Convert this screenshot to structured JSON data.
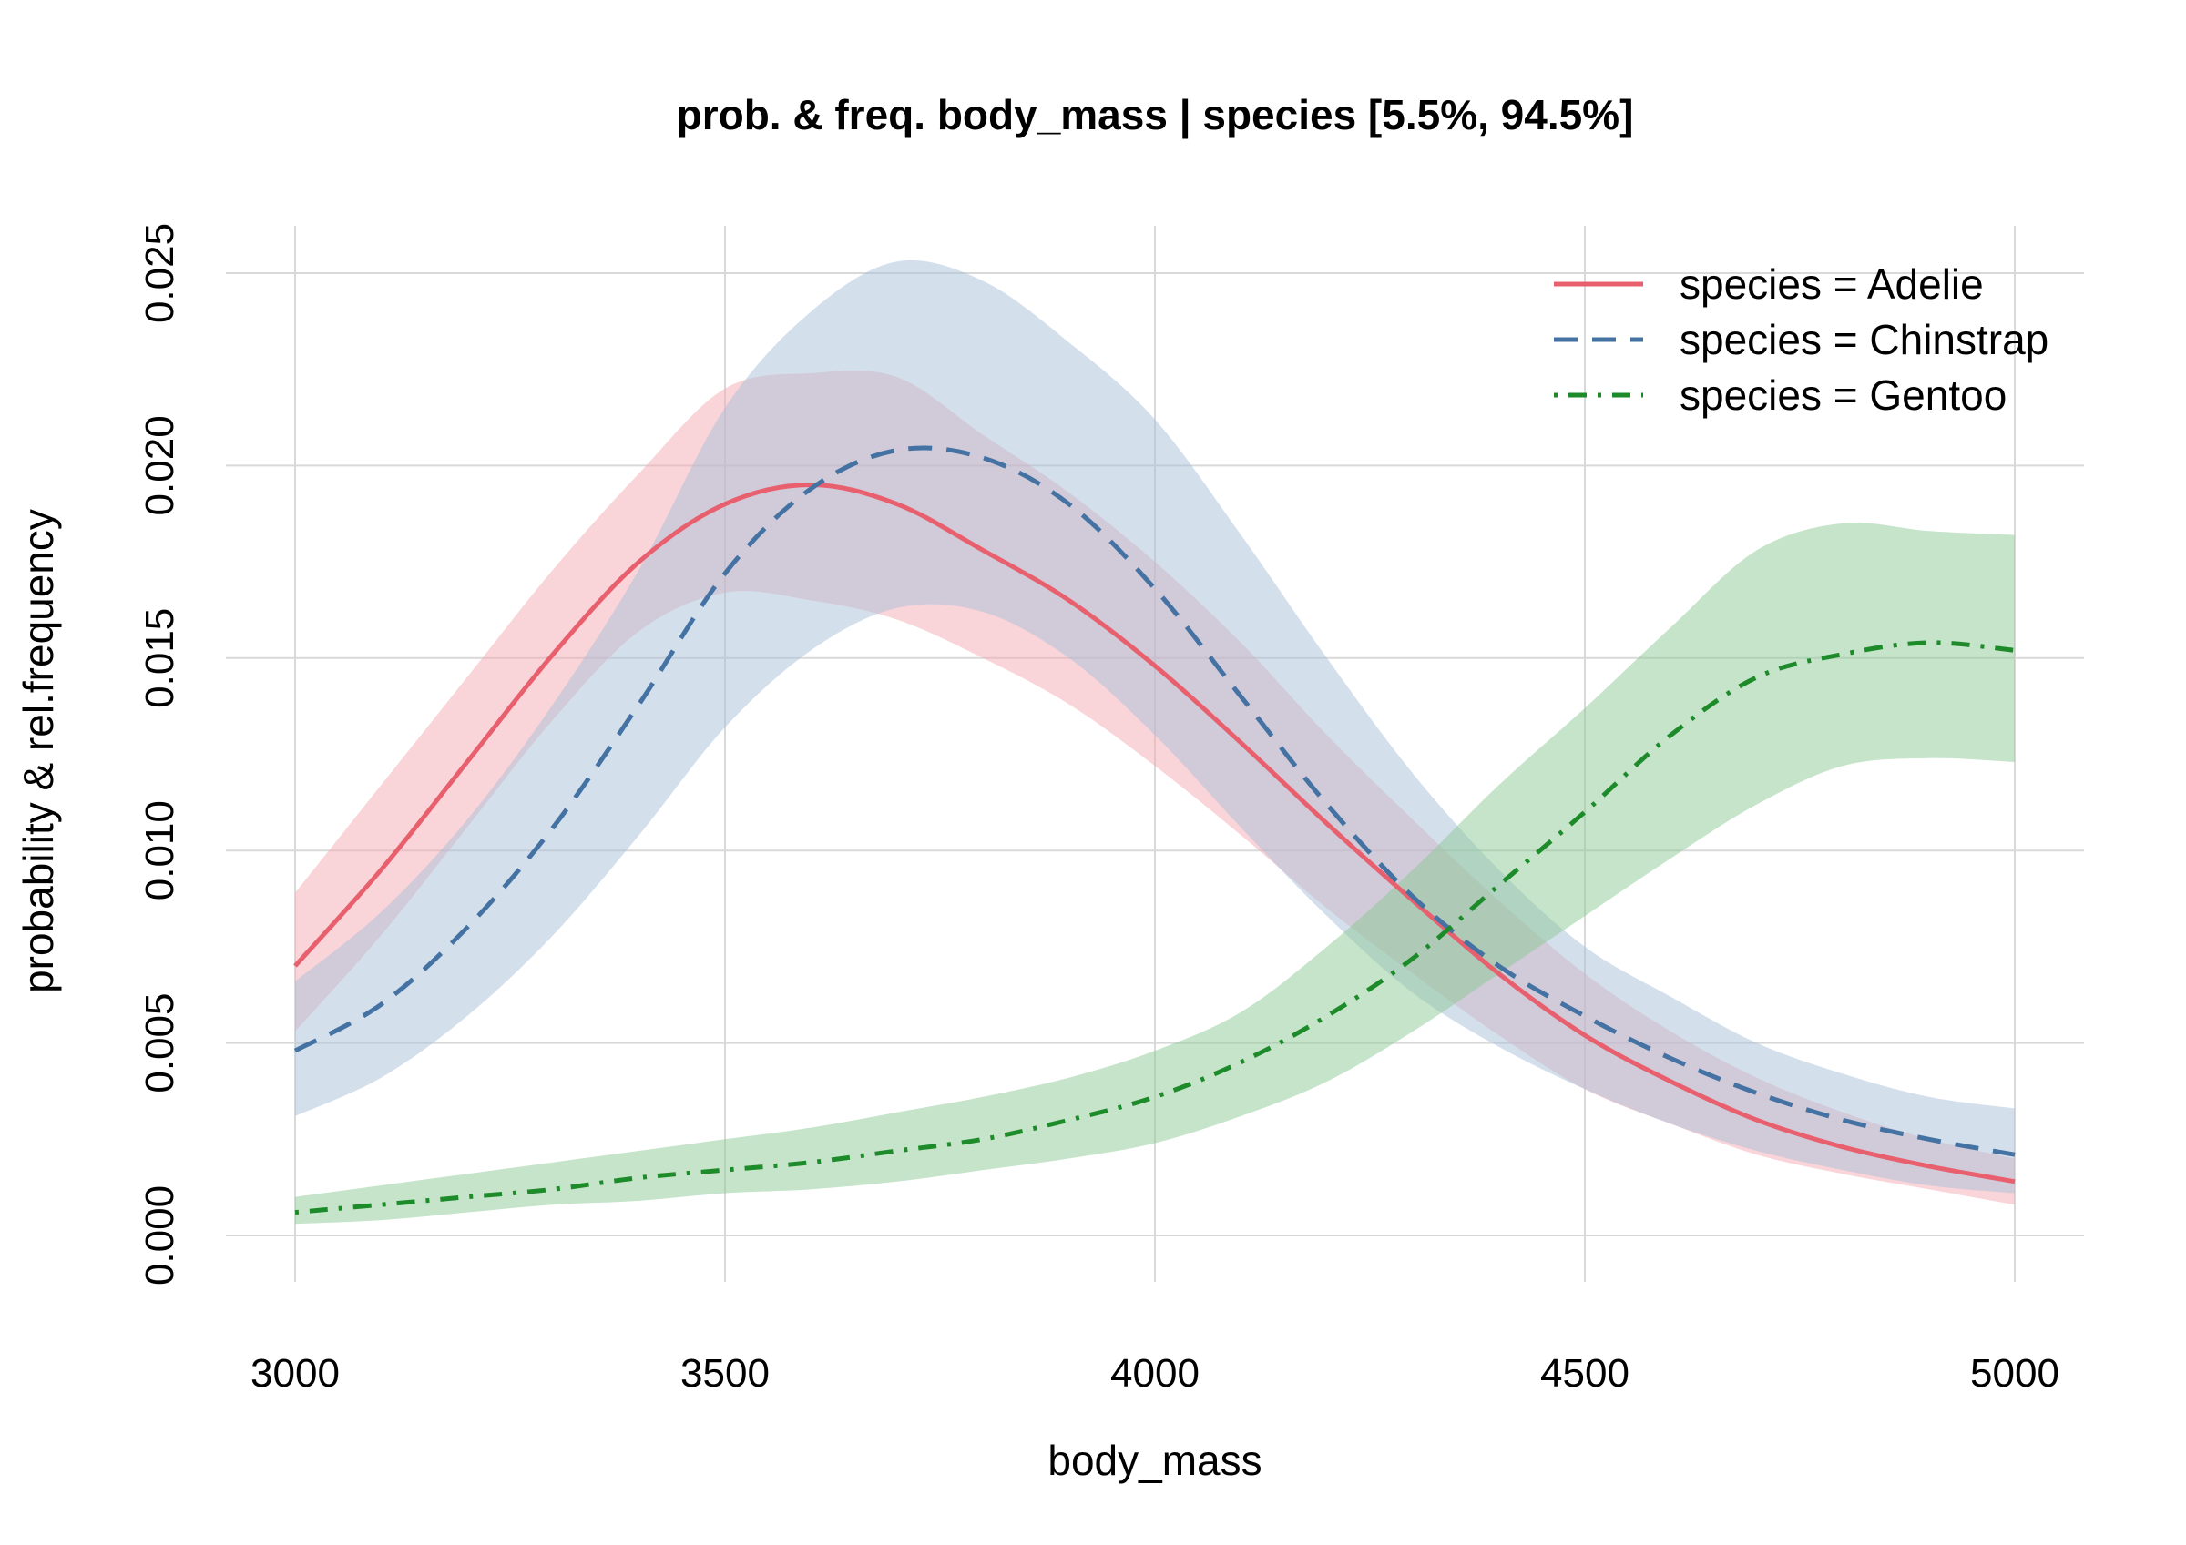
{
  "chart_data": {
    "type": "line",
    "title": "prob. & freq.  body_mass | species  [5.5%, 94.5%]",
    "xlabel": "body_mass",
    "ylabel": "probability & rel.frequency",
    "xlim": [
      3000,
      5000
    ],
    "ylim": [
      0,
      0.025
    ],
    "x_ticks": [
      3000,
      3500,
      4000,
      4500,
      5000
    ],
    "x_tick_labels": [
      "3000",
      "3500",
      "4000",
      "4500",
      "5000"
    ],
    "y_ticks": [
      0,
      0.005,
      0.01,
      0.015,
      0.02,
      0.025
    ],
    "y_tick_labels": [
      "0.000",
      "0.005",
      "0.010",
      "0.015",
      "0.020",
      "0.025"
    ],
    "grid": true,
    "legend_position": "top-right",
    "x": [
      3000,
      3100,
      3200,
      3300,
      3400,
      3500,
      3600,
      3700,
      3800,
      3900,
      4000,
      4100,
      4200,
      4300,
      4400,
      4500,
      4600,
      4700,
      4800,
      4900,
      5000
    ],
    "series": [
      {
        "name": "species = Adelie",
        "color": "#e8606e",
        "band_color": "#f4a9b2",
        "line_style": "solid",
        "values": [
          0.007,
          0.0095,
          0.0123,
          0.0151,
          0.0175,
          0.019,
          0.0195,
          0.019,
          0.0178,
          0.0165,
          0.0148,
          0.0128,
          0.0107,
          0.0087,
          0.0068,
          0.0052,
          0.004,
          0.003,
          0.0023,
          0.0018,
          0.0014
        ],
        "lower": [
          0.0053,
          0.0078,
          0.0106,
          0.0134,
          0.0157,
          0.0167,
          0.0165,
          0.016,
          0.015,
          0.0138,
          0.0122,
          0.0104,
          0.0085,
          0.0068,
          0.0052,
          0.0038,
          0.0029,
          0.0021,
          0.0016,
          0.0012,
          0.0008
        ],
        "upper": [
          0.0089,
          0.0117,
          0.0145,
          0.0173,
          0.0198,
          0.022,
          0.0224,
          0.0223,
          0.0208,
          0.0193,
          0.0175,
          0.0154,
          0.013,
          0.0108,
          0.0087,
          0.0068,
          0.0053,
          0.0041,
          0.0032,
          0.0025,
          0.002
        ]
      },
      {
        "name": "species = Chinstrap",
        "color": "#4472a3",
        "band_color": "#a9bfd9",
        "line_style": "dashed",
        "values": [
          0.0048,
          0.006,
          0.008,
          0.0106,
          0.0138,
          0.0172,
          0.0194,
          0.0204,
          0.0202,
          0.019,
          0.0168,
          0.014,
          0.0112,
          0.0088,
          0.007,
          0.0057,
          0.0046,
          0.0037,
          0.003,
          0.0025,
          0.0021
        ],
        "lower": [
          0.0031,
          0.0041,
          0.0057,
          0.0078,
          0.0104,
          0.0132,
          0.0152,
          0.0163,
          0.0162,
          0.015,
          0.013,
          0.0106,
          0.0083,
          0.0063,
          0.0049,
          0.0038,
          0.0029,
          0.0022,
          0.0017,
          0.0013,
          0.0011
        ],
        "upper": [
          0.0066,
          0.0084,
          0.0108,
          0.0138,
          0.0173,
          0.0215,
          0.024,
          0.0253,
          0.0248,
          0.0232,
          0.0212,
          0.0182,
          0.015,
          0.012,
          0.0095,
          0.0075,
          0.0062,
          0.005,
          0.0042,
          0.0036,
          0.0033
        ]
      },
      {
        "name": "species = Gentoo",
        "color": "#1e8b2a",
        "band_color": "#8cc995",
        "line_style": "dotdash",
        "values": [
          0.0006,
          0.0008,
          0.001,
          0.0012,
          0.0015,
          0.0017,
          0.0019,
          0.0022,
          0.0025,
          0.003,
          0.0036,
          0.0045,
          0.0057,
          0.0072,
          0.0091,
          0.011,
          0.013,
          0.0145,
          0.0151,
          0.0154,
          0.0152
        ],
        "lower": [
          0.0003,
          0.0004,
          0.0006,
          0.0008,
          0.0009,
          0.0011,
          0.0012,
          0.0014,
          0.0017,
          0.002,
          0.0024,
          0.0031,
          0.004,
          0.0053,
          0.0068,
          0.0083,
          0.0098,
          0.0112,
          0.0122,
          0.0124,
          0.0123
        ],
        "upper": [
          0.001,
          0.0013,
          0.0016,
          0.0019,
          0.0022,
          0.0025,
          0.0028,
          0.0032,
          0.0036,
          0.0041,
          0.0048,
          0.0058,
          0.0075,
          0.0095,
          0.0117,
          0.0137,
          0.0158,
          0.0178,
          0.0185,
          0.0183,
          0.0182
        ]
      }
    ]
  }
}
